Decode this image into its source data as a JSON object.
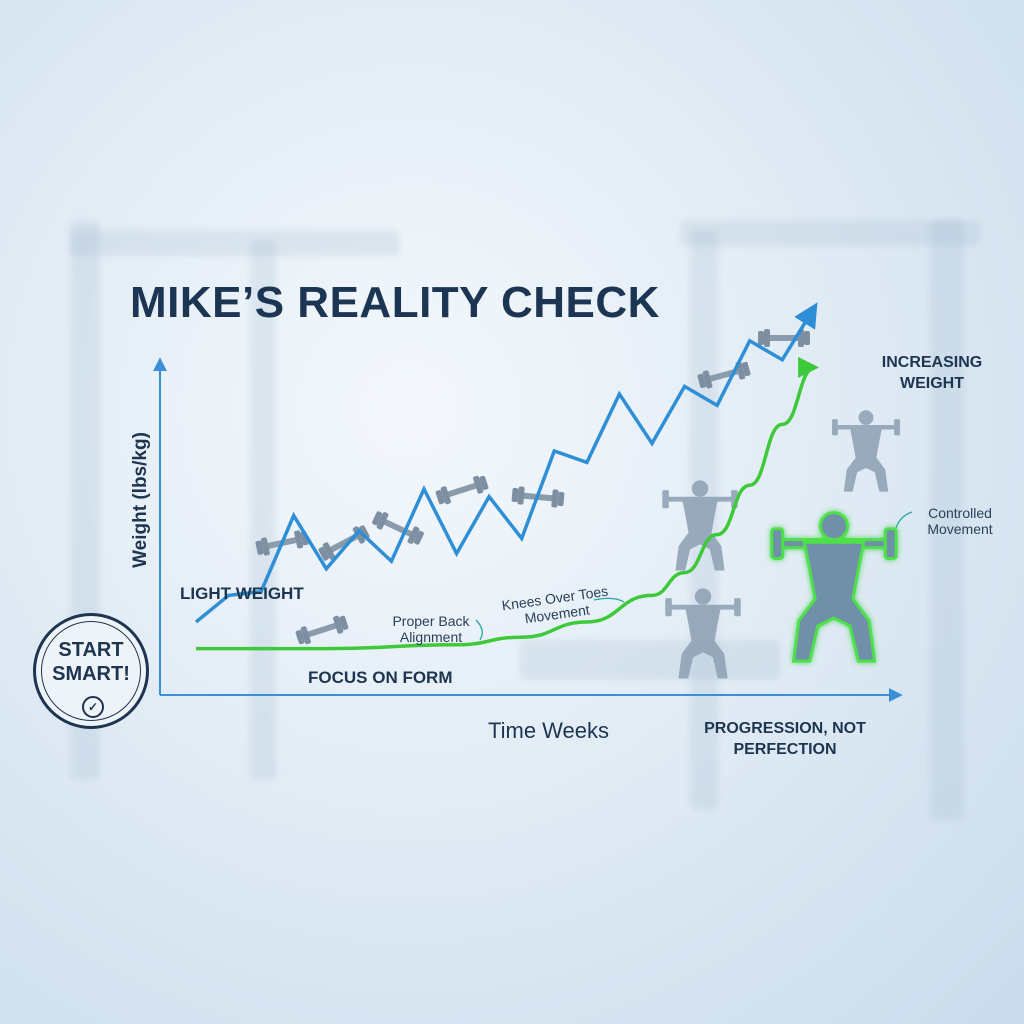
{
  "chart_data": {
    "type": "line",
    "title": "MIKE’S REALITY CHECK",
    "xlabel": "Time Weeks",
    "ylabel": "Weight (lbs/kg)",
    "series": [
      {
        "name": "INCREASING WEIGHT",
        "color": "#2f8fd6",
        "values": [
          [
            0,
            10
          ],
          [
            1,
            17
          ],
          [
            2,
            18
          ],
          [
            3,
            38
          ],
          [
            4,
            24
          ],
          [
            5,
            34
          ],
          [
            6,
            26
          ],
          [
            7,
            45
          ],
          [
            8,
            28
          ],
          [
            9,
            43
          ],
          [
            10,
            32
          ],
          [
            11,
            55
          ],
          [
            12,
            52
          ],
          [
            13,
            70
          ],
          [
            14,
            57
          ],
          [
            15,
            72
          ],
          [
            16,
            67
          ],
          [
            17,
            84
          ],
          [
            18,
            79
          ],
          [
            19,
            93
          ]
        ]
      },
      {
        "name": "FOCUS ON FORM",
        "color": "#3ec93a",
        "values": [
          [
            0,
            3
          ],
          [
            4,
            3
          ],
          [
            8,
            4
          ],
          [
            10,
            6
          ],
          [
            12,
            10
          ],
          [
            14,
            17
          ],
          [
            15,
            23
          ],
          [
            16,
            33
          ],
          [
            17,
            46
          ],
          [
            18,
            62
          ],
          [
            19,
            77
          ]
        ]
      }
    ],
    "xlim": [
      0,
      21
    ],
    "ylim": [
      0,
      100
    ],
    "annotations": [
      "LIGHT WEIGHT",
      "Proper Back Alignment",
      "Knees Over Toes Movement",
      "Controlled Movement",
      "PROGRESSION, NOT PERFECTION"
    ]
  },
  "labels": {
    "light_weight": "LIGHT WEIGHT",
    "focus_form": "FOCUS ON FORM",
    "increasing_weight": "INCREASING\nWEIGHT",
    "proper_back": "Proper Back\nAlignment",
    "knees_over_toes": "Knees Over Toes\nMovement",
    "controlled": "Controlled\nMovement",
    "progression": "PROGRESSION, NOT\nPERFECTION"
  },
  "stamp": {
    "text": "START\nSMART!",
    "icon": "check-circle-icon"
  },
  "icons": [
    "dumbbell-icon",
    "squat-figure-icon"
  ],
  "colors": {
    "axis": "#3a8fd6",
    "weight_line": "#2f8fd6",
    "form_line": "#3ec93a",
    "text": "#1d3550"
  }
}
